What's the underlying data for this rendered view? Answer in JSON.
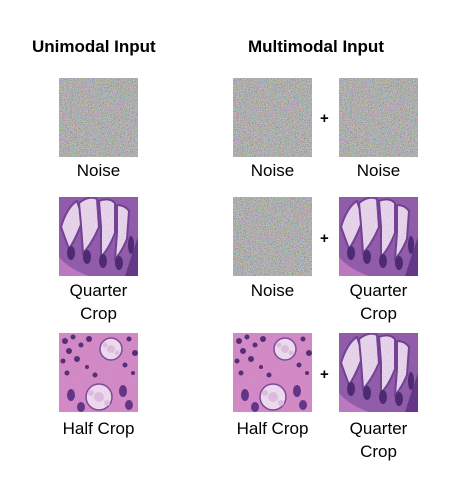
{
  "headers": {
    "unimodal": "Unimodal Input",
    "multimodal": "Multimodal Input"
  },
  "plus_sign": "+",
  "rows": [
    {
      "uni_label": [
        "Noise"
      ],
      "multi_left_label": [
        "Noise"
      ],
      "multi_right_label": [
        "Noise"
      ],
      "uni_tile": "noise-texture",
      "multi_left_tile": "noise-texture",
      "multi_right_tile": "noise-texture"
    },
    {
      "uni_label": [
        "Quarter",
        "Crop"
      ],
      "multi_left_label": [
        "Noise"
      ],
      "multi_right_label": [
        "Quarter",
        "Crop"
      ],
      "uni_tile": "histology-quarter-crop",
      "multi_left_tile": "noise-texture",
      "multi_right_tile": "histology-quarter-crop"
    },
    {
      "uni_label": [
        "Half Crop"
      ],
      "multi_left_label": [
        "Half Crop"
      ],
      "multi_right_label": [
        "Quarter",
        "Crop"
      ],
      "uni_tile": "histology-half-crop",
      "multi_left_tile": "histology-half-crop",
      "multi_right_tile": "histology-quarter-crop"
    }
  ],
  "colors": {
    "noise_base": "#8a8a8a",
    "tissue_pink": "#d98ec8",
    "tissue_purple": "#6b3a8e",
    "nuclei": "#3f1f66"
  }
}
